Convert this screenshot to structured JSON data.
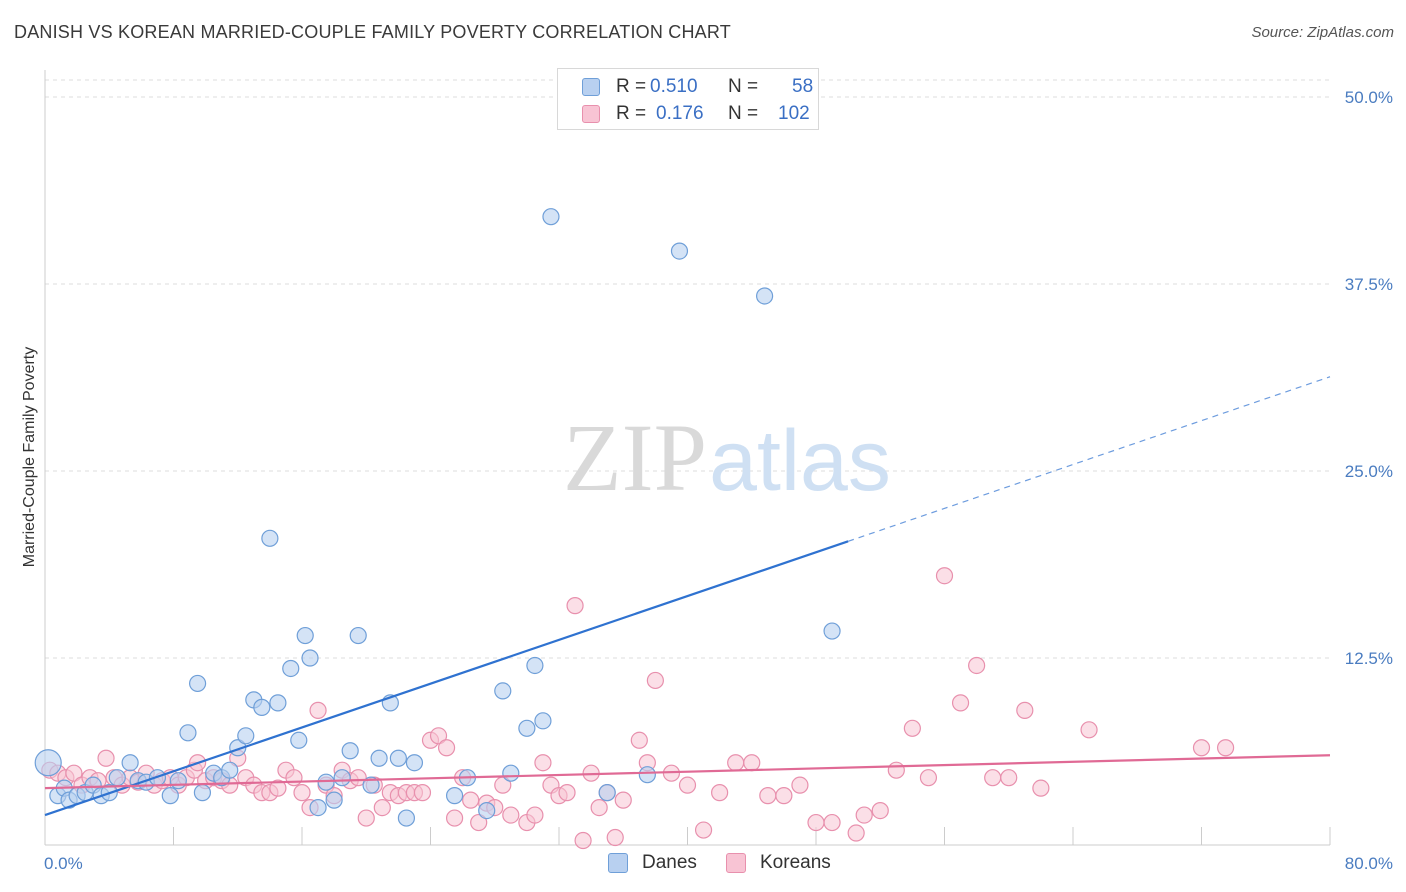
{
  "title": "DANISH VS KOREAN MARRIED-COUPLE FAMILY POVERTY CORRELATION CHART",
  "source": "Source: ZipAtlas.com",
  "watermark": {
    "zip": "ZIP",
    "atlas": "atlas"
  },
  "legend": {
    "rows": [
      {
        "r_label": "R =",
        "r_value": "0.510",
        "n_label": "N =",
        "n_value": "58"
      },
      {
        "r_label": "R =",
        "r_value": "0.176",
        "n_label": "N =",
        "n_value": "102"
      }
    ]
  },
  "colors": {
    "danes_fill": "#b8d0f0",
    "danes_stroke": "#6f9fd8",
    "danes_line": "#2f72d0",
    "koreans_fill": "#f8c4d4",
    "koreans_stroke": "#e890ad",
    "koreans_line": "#e06a95",
    "tick_text": "#4a7cc0",
    "grid": "#dddddd"
  },
  "chart_data": {
    "type": "scatter",
    "title": "DANISH VS KOREAN MARRIED-COUPLE FAMILY POVERTY CORRELATION CHART",
    "xlabel": "",
    "ylabel": "Married-Couple Family Poverty",
    "xlim": [
      0,
      80
    ],
    "ylim": [
      0,
      52
    ],
    "x_tick_labels": [
      "0.0%",
      "80.0%"
    ],
    "y_ticks": [
      12.5,
      25.0,
      37.5,
      50.0
    ],
    "y_tick_labels": [
      "12.5%",
      "25.0%",
      "37.5%",
      "50.0%"
    ],
    "grid": "horizontal dashed",
    "legend_position": "top-center and bottom",
    "series": [
      {
        "name": "Danes",
        "r": 0.51,
        "n": 58,
        "trend": {
          "x": [
            0,
            50
          ],
          "y": [
            2.0,
            20.3
          ]
        },
        "trend_dashed": {
          "x": [
            50,
            80
          ],
          "y": [
            20.3,
            31.3
          ]
        },
        "points": [
          [
            0.2,
            5.5
          ],
          [
            0.8,
            3.3
          ],
          [
            1.2,
            3.8
          ],
          [
            1.5,
            3.0
          ],
          [
            2.0,
            3.3
          ],
          [
            2.5,
            3.5
          ],
          [
            3.0,
            4.0
          ],
          [
            3.5,
            3.3
          ],
          [
            4.0,
            3.5
          ],
          [
            4.5,
            4.5
          ],
          [
            5.3,
            5.5
          ],
          [
            5.8,
            4.3
          ],
          [
            6.3,
            4.2
          ],
          [
            7.0,
            4.5
          ],
          [
            7.8,
            3.3
          ],
          [
            8.3,
            4.3
          ],
          [
            8.9,
            7.5
          ],
          [
            9.5,
            10.8
          ],
          [
            9.8,
            3.5
          ],
          [
            10.5,
            4.8
          ],
          [
            11.0,
            4.5
          ],
          [
            11.5,
            5.0
          ],
          [
            12.0,
            6.5
          ],
          [
            12.5,
            7.3
          ],
          [
            13.0,
            9.7
          ],
          [
            13.5,
            9.2
          ],
          [
            14.0,
            20.5
          ],
          [
            14.5,
            9.5
          ],
          [
            15.3,
            11.8
          ],
          [
            15.8,
            7.0
          ],
          [
            16.2,
            14.0
          ],
          [
            16.5,
            12.5
          ],
          [
            17.0,
            2.5
          ],
          [
            17.5,
            4.2
          ],
          [
            18.0,
            3.0
          ],
          [
            18.5,
            4.5
          ],
          [
            19.0,
            6.3
          ],
          [
            19.5,
            14.0
          ],
          [
            20.3,
            4.0
          ],
          [
            20.8,
            5.8
          ],
          [
            21.5,
            9.5
          ],
          [
            22.0,
            5.8
          ],
          [
            22.5,
            1.8
          ],
          [
            23.0,
            5.5
          ],
          [
            25.5,
            3.3
          ],
          [
            26.3,
            4.5
          ],
          [
            27.5,
            2.3
          ],
          [
            28.5,
            10.3
          ],
          [
            29.0,
            4.8
          ],
          [
            30.0,
            7.8
          ],
          [
            30.5,
            12.0
          ],
          [
            31.0,
            8.3
          ],
          [
            31.5,
            42.0
          ],
          [
            35.0,
            3.5
          ],
          [
            37.5,
            4.7
          ],
          [
            39.5,
            39.7
          ],
          [
            44.8,
            36.7
          ],
          [
            49.0,
            14.3
          ]
        ]
      },
      {
        "name": "Koreans",
        "r": 0.176,
        "n": 102,
        "trend": {
          "x": [
            0,
            80
          ],
          "y": [
            3.8,
            6.0
          ]
        },
        "points": [
          [
            0.3,
            5.0
          ],
          [
            0.8,
            4.8
          ],
          [
            1.3,
            4.5
          ],
          [
            1.8,
            4.8
          ],
          [
            2.3,
            4.0
          ],
          [
            2.8,
            4.5
          ],
          [
            3.3,
            4.3
          ],
          [
            3.8,
            5.8
          ],
          [
            4.3,
            4.5
          ],
          [
            4.8,
            4.0
          ],
          [
            5.3,
            4.5
          ],
          [
            5.8,
            4.2
          ],
          [
            6.3,
            4.8
          ],
          [
            6.8,
            4.0
          ],
          [
            7.3,
            4.3
          ],
          [
            7.8,
            4.5
          ],
          [
            8.3,
            4.0
          ],
          [
            8.8,
            4.5
          ],
          [
            9.3,
            5.0
          ],
          [
            9.5,
            5.5
          ],
          [
            10.0,
            4.3
          ],
          [
            10.5,
            4.5
          ],
          [
            11.0,
            4.3
          ],
          [
            11.5,
            4.0
          ],
          [
            12.0,
            5.8
          ],
          [
            12.5,
            4.5
          ],
          [
            13.0,
            4.0
          ],
          [
            13.5,
            3.5
          ],
          [
            14.0,
            3.5
          ],
          [
            14.5,
            3.8
          ],
          [
            15.0,
            5.0
          ],
          [
            15.5,
            4.5
          ],
          [
            16.0,
            3.5
          ],
          [
            16.5,
            2.5
          ],
          [
            17.0,
            9.0
          ],
          [
            17.5,
            4.0
          ],
          [
            18.0,
            3.3
          ],
          [
            18.5,
            5.0
          ],
          [
            19.0,
            4.3
          ],
          [
            19.5,
            4.5
          ],
          [
            20.0,
            1.8
          ],
          [
            20.5,
            4.0
          ],
          [
            21.0,
            2.5
          ],
          [
            21.5,
            3.5
          ],
          [
            22.0,
            3.3
          ],
          [
            22.5,
            3.5
          ],
          [
            23.0,
            3.5
          ],
          [
            23.5,
            3.5
          ],
          [
            24.0,
            7.0
          ],
          [
            24.5,
            7.3
          ],
          [
            25.0,
            6.5
          ],
          [
            25.5,
            1.8
          ],
          [
            26.0,
            4.5
          ],
          [
            26.5,
            3.0
          ],
          [
            27.0,
            1.5
          ],
          [
            27.5,
            2.8
          ],
          [
            28.0,
            2.5
          ],
          [
            28.5,
            4.0
          ],
          [
            29.0,
            2.0
          ],
          [
            30.0,
            1.5
          ],
          [
            30.5,
            2.0
          ],
          [
            31.0,
            5.5
          ],
          [
            31.5,
            4.0
          ],
          [
            32.0,
            3.3
          ],
          [
            32.5,
            3.5
          ],
          [
            33.0,
            16.0
          ],
          [
            33.5,
            0.3
          ],
          [
            34.0,
            4.8
          ],
          [
            34.5,
            2.5
          ],
          [
            35.0,
            3.5
          ],
          [
            35.5,
            0.5
          ],
          [
            36.0,
            3.0
          ],
          [
            37.0,
            7.0
          ],
          [
            37.5,
            5.5
          ],
          [
            38.0,
            11.0
          ],
          [
            39.0,
            4.8
          ],
          [
            40.0,
            4.0
          ],
          [
            41.0,
            1.0
          ],
          [
            42.0,
            3.5
          ],
          [
            43.0,
            5.5
          ],
          [
            44.0,
            5.5
          ],
          [
            45.0,
            3.3
          ],
          [
            46.0,
            3.3
          ],
          [
            47.0,
            4.0
          ],
          [
            48.0,
            1.5
          ],
          [
            49.0,
            1.5
          ],
          [
            50.5,
            0.8
          ],
          [
            51.0,
            2.0
          ],
          [
            52.0,
            2.3
          ],
          [
            53.0,
            5.0
          ],
          [
            54.0,
            7.8
          ],
          [
            55.0,
            4.5
          ],
          [
            56.0,
            18.0
          ],
          [
            57.0,
            9.5
          ],
          [
            58.0,
            12.0
          ],
          [
            59.0,
            4.5
          ],
          [
            60.0,
            4.5
          ],
          [
            61.0,
            9.0
          ],
          [
            62.0,
            3.8
          ],
          [
            65.0,
            7.7
          ],
          [
            72.0,
            6.5
          ],
          [
            73.5,
            6.5
          ]
        ]
      }
    ]
  },
  "bottom_legend": [
    {
      "label": "Danes"
    },
    {
      "label": "Koreans"
    }
  ]
}
